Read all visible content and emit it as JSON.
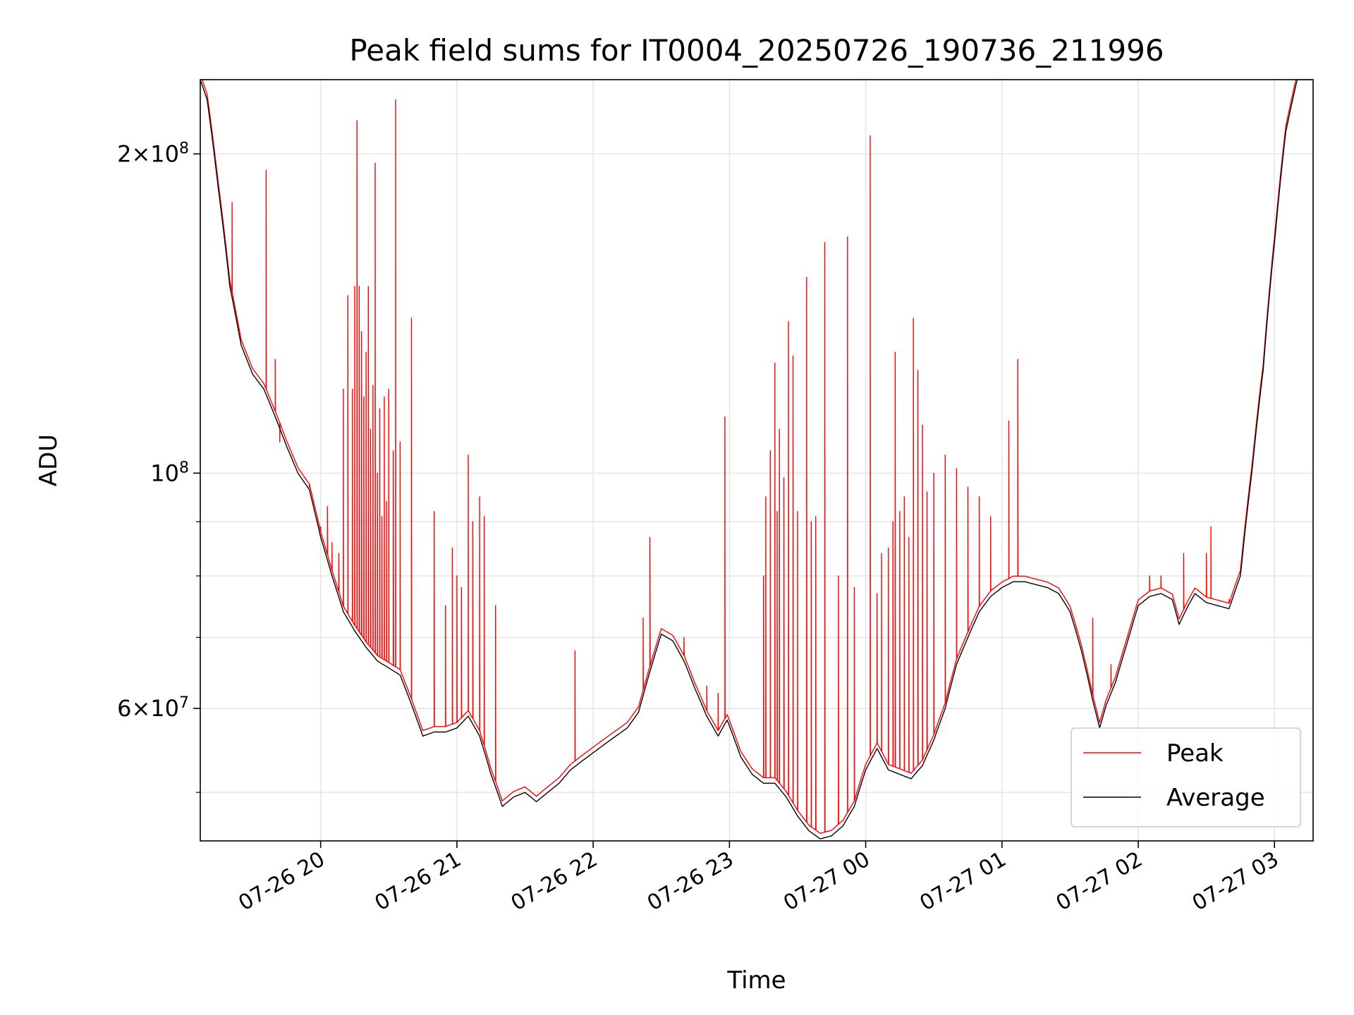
{
  "chart_data": {
    "type": "line",
    "title": "Peak field sums for IT0004_20250726_190736_211996",
    "xlabel": "Time",
    "ylabel": "ADU",
    "yscale": "log",
    "xlim": [
      "2025-07-26 19:07",
      "2025-07-27 03:17"
    ],
    "ylim": [
      45000000,
      235000000
    ],
    "xticks": [
      {
        "time": "2025-07-26 20:00",
        "label": "07-26 20"
      },
      {
        "time": "2025-07-26 21:00",
        "label": "07-26 21"
      },
      {
        "time": "2025-07-26 22:00",
        "label": "07-26 22"
      },
      {
        "time": "2025-07-26 23:00",
        "label": "07-26 23"
      },
      {
        "time": "2025-07-27 00:00",
        "label": "07-27 00"
      },
      {
        "time": "2025-07-27 01:00",
        "label": "07-27 01"
      },
      {
        "time": "2025-07-27 02:00",
        "label": "07-27 02"
      },
      {
        "time": "2025-07-27 03:00",
        "label": "07-27 03"
      }
    ],
    "yticks_major": [
      {
        "value": 60000000,
        "base": "6",
        "exp": "7"
      },
      {
        "value": 100000000,
        "base": "",
        "exp": "8"
      },
      {
        "value": 200000000,
        "base": "2",
        "exp": "8"
      }
    ],
    "yticks_minor": [
      50000000,
      70000000,
      80000000,
      90000000
    ],
    "grid": true,
    "legend_position": "lower-right",
    "series": [
      {
        "name": "Average",
        "color": "#000000",
        "points": [
          [
            "2025-07-26 19:07",
            235000000
          ],
          [
            "2025-07-26 19:10",
            225000000
          ],
          [
            "2025-07-26 19:15",
            185000000
          ],
          [
            "2025-07-26 19:20",
            150000000
          ],
          [
            "2025-07-26 19:25",
            132000000
          ],
          [
            "2025-07-26 19:30",
            124000000
          ],
          [
            "2025-07-26 19:35",
            120000000
          ],
          [
            "2025-07-26 19:40",
            113000000
          ],
          [
            "2025-07-26 19:45",
            106000000
          ],
          [
            "2025-07-26 19:50",
            100000000
          ],
          [
            "2025-07-26 19:55",
            96500000
          ],
          [
            "2025-07-26 20:00",
            87000000
          ],
          [
            "2025-07-26 20:05",
            80000000
          ],
          [
            "2025-07-26 20:10",
            74000000
          ],
          [
            "2025-07-26 20:15",
            71000000
          ],
          [
            "2025-07-26 20:20",
            68500000
          ],
          [
            "2025-07-26 20:25",
            66500000
          ],
          [
            "2025-07-26 20:30",
            65500000
          ],
          [
            "2025-07-26 20:35",
            64500000
          ],
          [
            "2025-07-26 20:40",
            60500000
          ],
          [
            "2025-07-26 20:45",
            56500000
          ],
          [
            "2025-07-26 20:50",
            57000000
          ],
          [
            "2025-07-26 20:55",
            57000000
          ],
          [
            "2025-07-26 21:00",
            57500000
          ],
          [
            "2025-07-26 21:05",
            59000000
          ],
          [
            "2025-07-26 21:10",
            56500000
          ],
          [
            "2025-07-26 21:15",
            52000000
          ],
          [
            "2025-07-26 21:20",
            48500000
          ],
          [
            "2025-07-26 21:25",
            49500000
          ],
          [
            "2025-07-26 21:30",
            50000000
          ],
          [
            "2025-07-26 21:35",
            49000000
          ],
          [
            "2025-07-26 21:40",
            50000000
          ],
          [
            "2025-07-26 21:45",
            51000000
          ],
          [
            "2025-07-26 21:50",
            52500000
          ],
          [
            "2025-07-26 21:55",
            53500000
          ],
          [
            "2025-07-26 22:00",
            54500000
          ],
          [
            "2025-07-26 22:05",
            55500000
          ],
          [
            "2025-07-26 22:10",
            56500000
          ],
          [
            "2025-07-26 22:15",
            57500000
          ],
          [
            "2025-07-26 22:20",
            59500000
          ],
          [
            "2025-07-26 22:25",
            65000000
          ],
          [
            "2025-07-26 22:30",
            70500000
          ],
          [
            "2025-07-26 22:35",
            69500000
          ],
          [
            "2025-07-26 22:40",
            66500000
          ],
          [
            "2025-07-26 22:45",
            62500000
          ],
          [
            "2025-07-26 22:50",
            59000000
          ],
          [
            "2025-07-26 22:55",
            56500000
          ],
          [
            "2025-07-26 22:59",
            58500000
          ],
          [
            "2025-07-26 23:05",
            54000000
          ],
          [
            "2025-07-26 23:10",
            52000000
          ],
          [
            "2025-07-26 23:15",
            51000000
          ],
          [
            "2025-07-26 23:20",
            51000000
          ],
          [
            "2025-07-26 23:25",
            49500000
          ],
          [
            "2025-07-26 23:30",
            47500000
          ],
          [
            "2025-07-26 23:35",
            46000000
          ],
          [
            "2025-07-26 23:40",
            45200000
          ],
          [
            "2025-07-26 23:45",
            45500000
          ],
          [
            "2025-07-26 23:50",
            46500000
          ],
          [
            "2025-07-26 23:55",
            48500000
          ],
          [
            "2025-07-27 00:00",
            52500000
          ],
          [
            "2025-07-27 00:05",
            55000000
          ],
          [
            "2025-07-27 00:10",
            52500000
          ],
          [
            "2025-07-27 00:15",
            52000000
          ],
          [
            "2025-07-27 00:20",
            51500000
          ],
          [
            "2025-07-27 00:25",
            53000000
          ],
          [
            "2025-07-27 00:30",
            56000000
          ],
          [
            "2025-07-27 00:35",
            60000000
          ],
          [
            "2025-07-27 00:40",
            66000000
          ],
          [
            "2025-07-27 00:45",
            70000000
          ],
          [
            "2025-07-27 00:50",
            74000000
          ],
          [
            "2025-07-27 00:55",
            76500000
          ],
          [
            "2025-07-27 01:00",
            78000000
          ],
          [
            "2025-07-27 01:05",
            79000000
          ],
          [
            "2025-07-27 01:10",
            79000000
          ],
          [
            "2025-07-27 01:15",
            78500000
          ],
          [
            "2025-07-27 01:20",
            78000000
          ],
          [
            "2025-07-27 01:25",
            77000000
          ],
          [
            "2025-07-27 01:30",
            74000000
          ],
          [
            "2025-07-27 01:35",
            68000000
          ],
          [
            "2025-07-27 01:40",
            61000000
          ],
          [
            "2025-07-27 01:43",
            57500000
          ],
          [
            "2025-07-27 01:46",
            60500000
          ],
          [
            "2025-07-27 01:50",
            63500000
          ],
          [
            "2025-07-27 01:55",
            69000000
          ],
          [
            "2025-07-27 02:00",
            75000000
          ],
          [
            "2025-07-27 02:05",
            76500000
          ],
          [
            "2025-07-27 02:10",
            77000000
          ],
          [
            "2025-07-27 02:15",
            76000000
          ],
          [
            "2025-07-27 02:18",
            72000000
          ],
          [
            "2025-07-27 02:22",
            75000000
          ],
          [
            "2025-07-27 02:25",
            77000000
          ],
          [
            "2025-07-27 02:30",
            75500000
          ],
          [
            "2025-07-27 02:35",
            75000000
          ],
          [
            "2025-07-27 02:40",
            74500000
          ],
          [
            "2025-07-27 02:45",
            80000000
          ],
          [
            "2025-07-27 02:50",
            100000000
          ],
          [
            "2025-07-27 02:55",
            125000000
          ],
          [
            "2025-07-27 03:00",
            165000000
          ],
          [
            "2025-07-27 03:05",
            210000000
          ],
          [
            "2025-07-27 03:10",
            235000000
          ],
          [
            "2025-07-27 03:17",
            235000000
          ]
        ]
      },
      {
        "name": "Peak",
        "color": "#ff0000",
        "spikes": [
          [
            "2025-07-26 19:21",
            180000000
          ],
          [
            "2025-07-26 19:36",
            193000000
          ],
          [
            "2025-07-26 19:40",
            128000000
          ],
          [
            "2025-07-26 19:42",
            107000000
          ],
          [
            "2025-07-26 19:55",
            97000000
          ],
          [
            "2025-07-26 20:00",
            89000000
          ],
          [
            "2025-07-26 20:03",
            93000000
          ],
          [
            "2025-07-26 20:05",
            86000000
          ],
          [
            "2025-07-26 20:08",
            84000000
          ],
          [
            "2025-07-26 20:10",
            120000000
          ],
          [
            "2025-07-26 20:12",
            147000000
          ],
          [
            "2025-07-26 20:14",
            120000000
          ],
          [
            "2025-07-26 20:15",
            150000000
          ],
          [
            "2025-07-26 20:16",
            215000000
          ],
          [
            "2025-07-26 20:17",
            150000000
          ],
          [
            "2025-07-26 20:18",
            136000000
          ],
          [
            "2025-07-26 20:19",
            118000000
          ],
          [
            "2025-07-26 20:20",
            130000000
          ],
          [
            "2025-07-26 20:21",
            150000000
          ],
          [
            "2025-07-26 20:22",
            110000000
          ],
          [
            "2025-07-26 20:23",
            121000000
          ],
          [
            "2025-07-26 20:24",
            196000000
          ],
          [
            "2025-07-26 20:25",
            100000000
          ],
          [
            "2025-07-26 20:26",
            115000000
          ],
          [
            "2025-07-26 20:27",
            91000000
          ],
          [
            "2025-07-26 20:28",
            118000000
          ],
          [
            "2025-07-26 20:29",
            94000000
          ],
          [
            "2025-07-26 20:30",
            120000000
          ],
          [
            "2025-07-26 20:32",
            105000000
          ],
          [
            "2025-07-26 20:33",
            225000000
          ],
          [
            "2025-07-26 20:35",
            107000000
          ],
          [
            "2025-07-26 20:40",
            140000000
          ],
          [
            "2025-07-26 20:50",
            92000000
          ],
          [
            "2025-07-26 20:55",
            75000000
          ],
          [
            "2025-07-26 20:58",
            85000000
          ],
          [
            "2025-07-26 21:00",
            80000000
          ],
          [
            "2025-07-26 21:02",
            78000000
          ],
          [
            "2025-07-26 21:05",
            104000000
          ],
          [
            "2025-07-26 21:07",
            90000000
          ],
          [
            "2025-07-26 21:10",
            95000000
          ],
          [
            "2025-07-26 21:12",
            91000000
          ],
          [
            "2025-07-26 21:17",
            75000000
          ],
          [
            "2025-07-26 21:52",
            68000000
          ],
          [
            "2025-07-26 22:22",
            73000000
          ],
          [
            "2025-07-26 22:25",
            87000000
          ],
          [
            "2025-07-26 22:40",
            70000000
          ],
          [
            "2025-07-26 22:50",
            63000000
          ],
          [
            "2025-07-26 22:55",
            62000000
          ],
          [
            "2025-07-26 22:58",
            113000000
          ],
          [
            "2025-07-26 23:15",
            80000000
          ],
          [
            "2025-07-26 23:16",
            95000000
          ],
          [
            "2025-07-26 23:18",
            105000000
          ],
          [
            "2025-07-26 23:20",
            127000000
          ],
          [
            "2025-07-26 23:21",
            92000000
          ],
          [
            "2025-07-26 23:22",
            110000000
          ],
          [
            "2025-07-26 23:24",
            99000000
          ],
          [
            "2025-07-26 23:26",
            139000000
          ],
          [
            "2025-07-26 23:28",
            129000000
          ],
          [
            "2025-07-26 23:30",
            92000000
          ],
          [
            "2025-07-26 23:34",
            153000000
          ],
          [
            "2025-07-26 23:36",
            90000000
          ],
          [
            "2025-07-26 23:38",
            91000000
          ],
          [
            "2025-07-26 23:42",
            165000000
          ],
          [
            "2025-07-26 23:48",
            80000000
          ],
          [
            "2025-07-26 23:52",
            167000000
          ],
          [
            "2025-07-26 23:55",
            78000000
          ],
          [
            "2025-07-27 00:02",
            208000000
          ],
          [
            "2025-07-27 00:05",
            77000000
          ],
          [
            "2025-07-27 00:07",
            84000000
          ],
          [
            "2025-07-27 00:10",
            85000000
          ],
          [
            "2025-07-27 00:12",
            90000000
          ],
          [
            "2025-07-27 00:13",
            130000000
          ],
          [
            "2025-07-27 00:15",
            92000000
          ],
          [
            "2025-07-27 00:17",
            95000000
          ],
          [
            "2025-07-27 00:19",
            87000000
          ],
          [
            "2025-07-27 00:21",
            140000000
          ],
          [
            "2025-07-27 00:23",
            125000000
          ],
          [
            "2025-07-27 00:25",
            111000000
          ],
          [
            "2025-07-27 00:27",
            96000000
          ],
          [
            "2025-07-27 00:30",
            100000000
          ],
          [
            "2025-07-27 00:35",
            104000000
          ],
          [
            "2025-07-27 00:40",
            101000000
          ],
          [
            "2025-07-27 00:45",
            97000000
          ],
          [
            "2025-07-27 00:50",
            95000000
          ],
          [
            "2025-07-27 00:55",
            91000000
          ],
          [
            "2025-07-27 01:03",
            112000000
          ],
          [
            "2025-07-27 01:07",
            128000000
          ],
          [
            "2025-07-27 01:40",
            73000000
          ],
          [
            "2025-07-27 01:48",
            66000000
          ],
          [
            "2025-07-27 02:05",
            80000000
          ],
          [
            "2025-07-27 02:10",
            80000000
          ],
          [
            "2025-07-27 02:20",
            84000000
          ],
          [
            "2025-07-27 02:30",
            84000000
          ],
          [
            "2025-07-27 02:32",
            89000000
          ],
          [
            "2025-07-27 02:40",
            76000000
          ]
        ]
      }
    ]
  }
}
